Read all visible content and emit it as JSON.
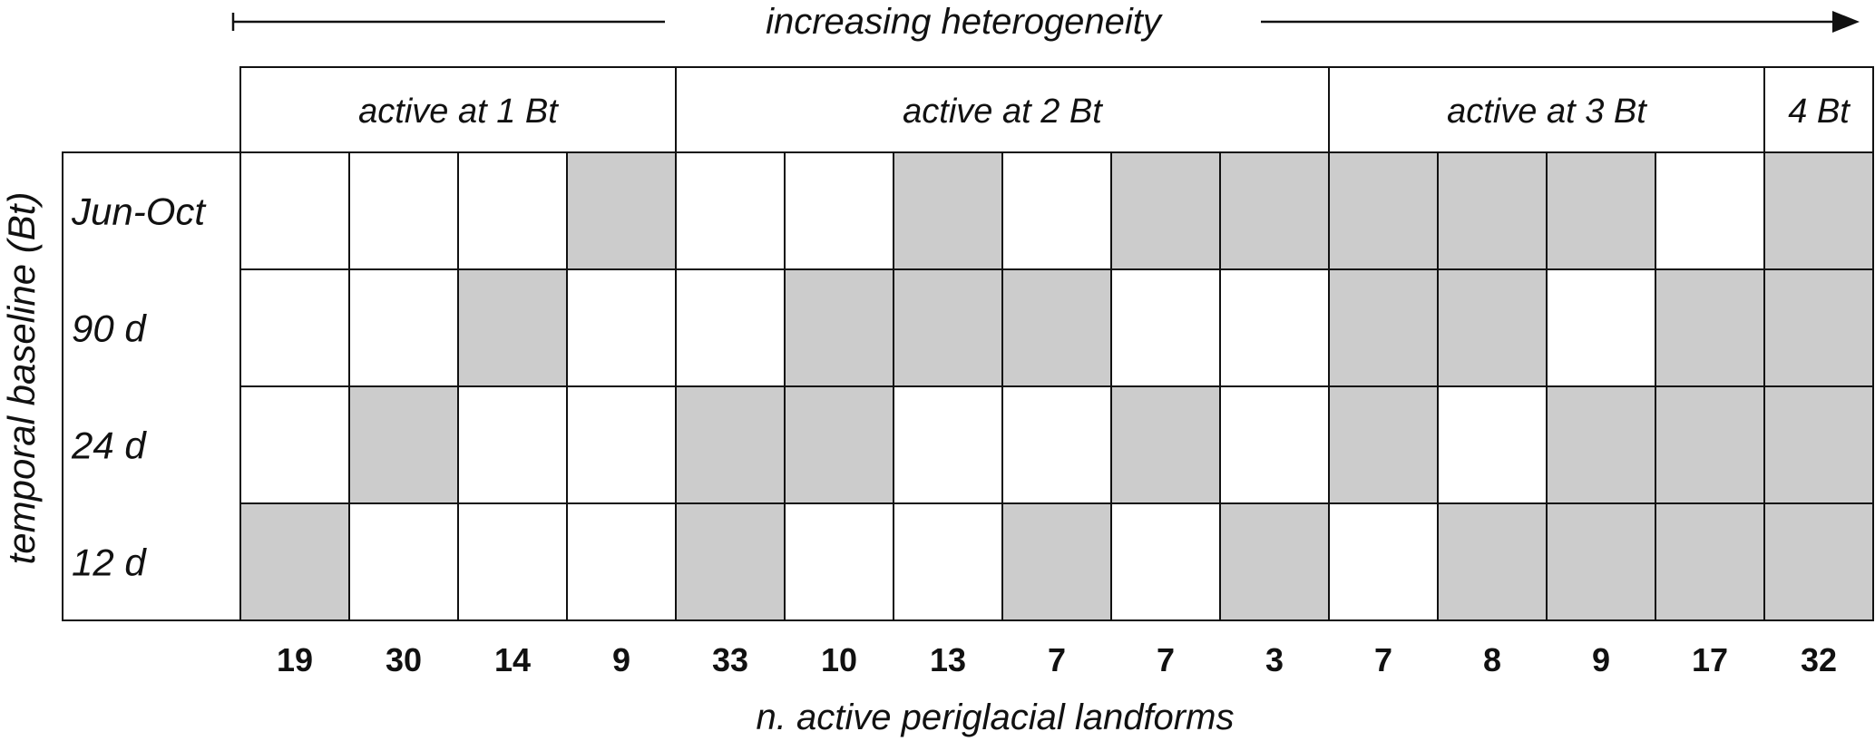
{
  "header": {
    "arrow_label": "increasing heterogeneity"
  },
  "y_axis": {
    "label": "temporal baseline (Bt)",
    "rows": [
      "Jun-Oct",
      "90 d",
      "24 d",
      "12 d"
    ]
  },
  "groups": [
    {
      "label": "active at 1 Bt",
      "span": 4
    },
    {
      "label": "active at 2 Bt",
      "span": 6
    },
    {
      "label": "active at 3 Bt",
      "span": 4
    },
    {
      "label": "4 Bt",
      "span": 1
    }
  ],
  "x_axis": {
    "label": "n. active periglacial landforms",
    "counts": [
      "19",
      "30",
      "14",
      "9",
      "33",
      "10",
      "13",
      "7",
      "7",
      "3",
      "7",
      "8",
      "9",
      "17",
      "32"
    ]
  },
  "grid": {
    "active_color": "#cccccc",
    "inactive_color": "#ffffff",
    "cells": [
      [
        0,
        0,
        0,
        1,
        0,
        0,
        1,
        0,
        1,
        1,
        1,
        1,
        1,
        0,
        1
      ],
      [
        0,
        0,
        1,
        0,
        0,
        1,
        1,
        1,
        0,
        0,
        1,
        1,
        0,
        1,
        1
      ],
      [
        0,
        1,
        0,
        0,
        1,
        1,
        0,
        0,
        1,
        0,
        1,
        0,
        1,
        1,
        1
      ],
      [
        1,
        0,
        0,
        0,
        1,
        0,
        0,
        1,
        0,
        1,
        0,
        1,
        1,
        1,
        1
      ]
    ]
  }
}
